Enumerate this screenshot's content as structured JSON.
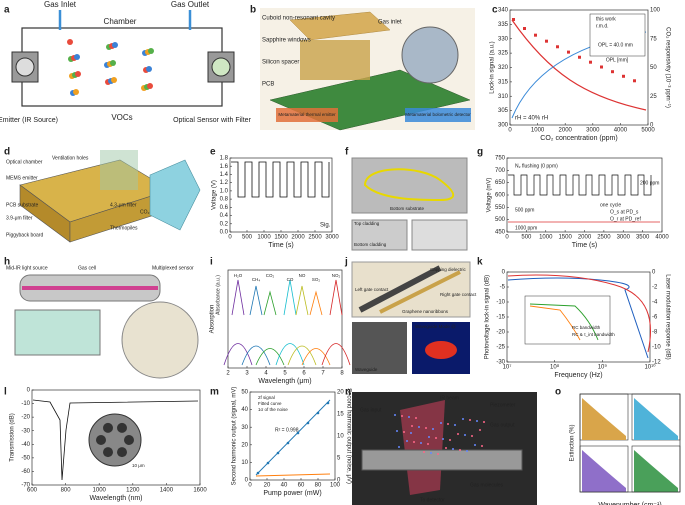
{
  "panels": {
    "a": {
      "label": "a",
      "texts": [
        "Gas Inlet",
        "Chamber",
        "Gas Outlet",
        "Emitter (IR Source)",
        "VOCs",
        "Optical Sensor with Filter"
      ]
    },
    "b": {
      "label": "b",
      "texts": [
        "Cuboid non-resonant cavity",
        "Sapphire windows",
        "Silicon spacer",
        "PCB",
        "Gas inlet",
        "Metamaterial thermal emitter",
        "Metamaterial bolometric detector"
      ]
    },
    "c": {
      "label": "c",
      "xlabel": "CO₂ concentration (ppm)",
      "ylabel": "Lock-in signal (a.u.)",
      "y2label": "CO₂ responsivity (10⁻³ ppm⁻¹)",
      "xticks": [
        "0",
        "1000",
        "2000",
        "3000",
        "4000",
        "5000"
      ],
      "yticks": [
        "300",
        "305",
        "310",
        "315",
        "320",
        "325",
        "330",
        "335",
        "340"
      ],
      "y2ticks": [
        "0",
        "25",
        "50",
        "75",
        "100"
      ],
      "texts": [
        "rH = 40% rH",
        "this work",
        "r.m.d.",
        "OPL = 40.0 mm",
        "OPL [mm]"
      ]
    },
    "d": {
      "label": "d",
      "texts": [
        "Optical chamber",
        "Ventilation holes",
        "MEMS emitter",
        "PCB substrate",
        "3.9-μm filter",
        "4.3-μm filter",
        "Piggyback board",
        "Thermopiles",
        "CO₂"
      ]
    },
    "e": {
      "label": "e",
      "xlabel": "Time (s)",
      "ylabel": "Voltage (V)",
      "xticks": [
        "0",
        "500",
        "1000",
        "1500",
        "2000",
        "2500",
        "3000"
      ],
      "yticks": [
        "0.0",
        "0.2",
        "0.4",
        "0.6",
        "0.8",
        "1.0",
        "1.2",
        "1.4",
        "1.6",
        "1.8"
      ],
      "texts": [
        "Sig."
      ]
    },
    "f": {
      "label": "f",
      "texts": [
        "Top cladding",
        "Bottom cladding",
        "Bottom substrate"
      ]
    },
    "g": {
      "label": "g",
      "xlabel": "Time (s)",
      "ylabel": "Voltage (mV)",
      "xticks": [
        "0",
        "500",
        "1000",
        "1500",
        "2000",
        "2500",
        "3000",
        "3500",
        "4000"
      ],
      "yticks": [
        "450",
        "500",
        "550",
        "600",
        "650",
        "700",
        "750"
      ],
      "texts": [
        "N₂ flushing (0 ppm)",
        "200 ppm",
        "500 ppm",
        "1000 ppm",
        "one cycle",
        "O_s at PD_s",
        "O_r at PD_ref"
      ]
    },
    "h": {
      "label": "h",
      "texts": [
        "Mid-IR light source",
        "Gas cell",
        "Multiplexed sensor"
      ]
    },
    "i": {
      "label": "i",
      "xlabel": "Wavelength (μm)",
      "ylabel": "Absorption",
      "xticks": [
        "2",
        "3",
        "4",
        "5",
        "6",
        "7",
        "8"
      ],
      "texts": [
        "Absorbance (a.u.)",
        "H₂O",
        "CH₄",
        "CO₂",
        "CO",
        "NO",
        "SO₂",
        "NO₂"
      ]
    },
    "j": {
      "label": "j",
      "texts": [
        "Graphene nanoribbons",
        "Capping dielectric",
        "Left gate contact",
        "Right gate contact",
        "Waveguide",
        "Waveguide Mode @"
      ]
    },
    "k": {
      "label": "k",
      "xlabel": "Frequency (Hz)",
      "ylabel": "Photovoltage lock-in signal (dB)",
      "y2label": "Laser modulation response (dB)",
      "xticks": [
        "10⁷",
        "10⁸",
        "10⁹",
        "10¹⁰"
      ],
      "yticks": [
        "-30",
        "-25",
        "-20",
        "-15",
        "-10",
        "-5",
        "0"
      ],
      "y2ticks": [
        "-12",
        "-10",
        "-8",
        "-6",
        "-4",
        "-2",
        "0"
      ],
      "texts": [
        "RC bandwidth",
        "RC & τ_int bandwidth"
      ]
    },
    "l": {
      "label": "l",
      "xlabel": "Wavelength (nm)",
      "ylabel": "Transmission (dB)",
      "xticks": [
        "600",
        "800",
        "1000",
        "1200",
        "1400",
        "1600"
      ],
      "yticks": [
        "-70",
        "-60",
        "-50",
        "-40",
        "-30",
        "-20",
        "-10",
        "0"
      ],
      "texts": [
        "10 μm"
      ]
    },
    "m": {
      "label": "m",
      "xlabel": "Pump power (mW)",
      "ylabel": "Second harmonic output (signal, mV)",
      "y2label": "Second harmonic output (noise, μV)",
      "xticks": [
        "0",
        "20",
        "40",
        "60",
        "80",
        "100"
      ],
      "yticks": [
        "0",
        "10",
        "20",
        "30",
        "40",
        "50"
      ],
      "y2ticks": [
        "0",
        "5",
        "10",
        "15",
        "20"
      ],
      "texts": [
        "2f signal",
        "Fitted curve",
        "1σ of the noise",
        "R² = 0.998"
      ]
    },
    "n": {
      "label": "n",
      "texts": [
        "IR beam",
        "Gas input",
        "Piezometer",
        "Gas output",
        "To detector",
        "Gas molecules"
      ]
    },
    "o": {
      "label": "o",
      "xlabel": "Wavenumber (cm⁻¹)",
      "ylabel": "Extinction (%)"
    }
  }
}
